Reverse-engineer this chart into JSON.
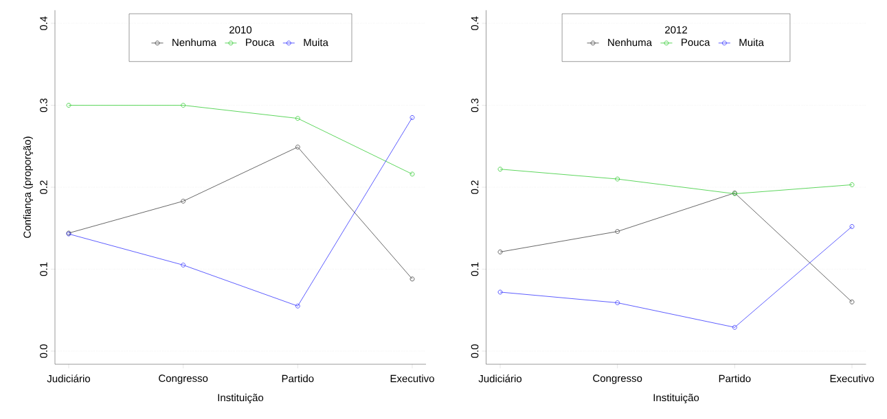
{
  "chart_data": [
    {
      "type": "line",
      "legend_title": "2010",
      "xlabel": "Instituição",
      "ylabel": "Confiança (proporção)",
      "categories": [
        "Judiciário",
        "Congresso",
        "Partido",
        "Executivo"
      ],
      "series": [
        {
          "name": "Nenhuma",
          "color": "#404040",
          "values": [
            0.144,
            0.183,
            0.249,
            0.088
          ]
        },
        {
          "name": "Pouca",
          "color": "#33cc33",
          "values": [
            0.3,
            0.3,
            0.284,
            0.216
          ]
        },
        {
          "name": "Muita",
          "color": "#3333ff",
          "values": [
            0.143,
            0.105,
            0.055,
            0.285
          ]
        }
      ],
      "ylim": [
        0,
        0.4
      ],
      "yticks": [
        {
          "value": 0,
          "label": "0.0"
        },
        0.1,
        0.2,
        0.3,
        0.4
      ],
      "grid": "y",
      "legend": "top",
      "marker": "circle"
    },
    {
      "type": "line",
      "legend_title": "2012",
      "xlabel": "Instituição",
      "categories": [
        "Judiciário",
        "Congresso",
        "Partido",
        "Executivo"
      ],
      "series": [
        {
          "name": "Nenhuma",
          "color": "#404040",
          "values": [
            0.121,
            0.146,
            0.193,
            0.06
          ]
        },
        {
          "name": "Pouca",
          "color": "#33cc33",
          "values": [
            0.222,
            0.21,
            0.192,
            0.203
          ]
        },
        {
          "name": "Muita",
          "color": "#3333ff",
          "values": [
            0.072,
            0.059,
            0.029,
            0.152
          ]
        }
      ],
      "ylim": [
        0,
        0.4
      ],
      "yticks": [
        {
          "value": 0,
          "label": "0.0"
        },
        0.1,
        0.2,
        0.3,
        0.4
      ],
      "grid": "y",
      "legend": "top",
      "marker": "circle"
    }
  ]
}
